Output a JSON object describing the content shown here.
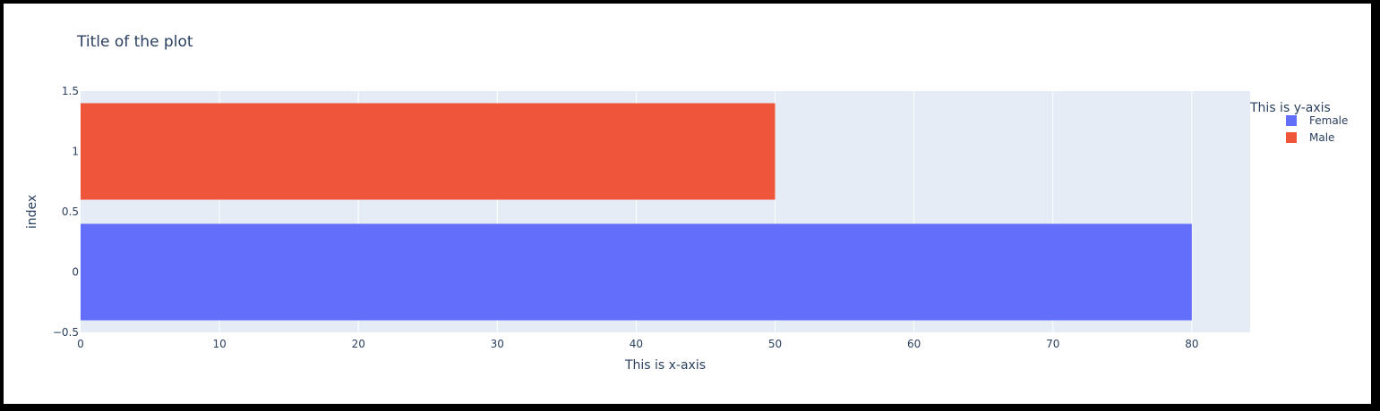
{
  "chart_data": {
    "type": "bar",
    "orientation": "horizontal",
    "title": "Title of the plot",
    "xlabel": "This is x-axis",
    "ylabel": "index",
    "xlim": [
      0,
      84.2
    ],
    "ylim": [
      -0.5,
      1.5
    ],
    "x_ticks": [
      0,
      10,
      20,
      30,
      40,
      50,
      60,
      70,
      80
    ],
    "y_ticks": [
      {
        "value": -0.5,
        "label": "−0.5"
      },
      {
        "value": 0,
        "label": "0"
      },
      {
        "value": 0.5,
        "label": "0.5"
      },
      {
        "value": 1,
        "label": "1"
      },
      {
        "value": 1.5,
        "label": "1.5"
      }
    ],
    "grid": true,
    "legend_title": "This is y-axis",
    "legend_position": "top-right",
    "series": [
      {
        "name": "Female",
        "color": "#636efa",
        "category": 0,
        "value": 80
      },
      {
        "name": "Male",
        "color": "#ef553b",
        "category": 1,
        "value": 50
      }
    ],
    "plot_bgcolor": "#e5ecf6",
    "grid_color": "#ffffff",
    "text_color": "#2a3f5f"
  }
}
